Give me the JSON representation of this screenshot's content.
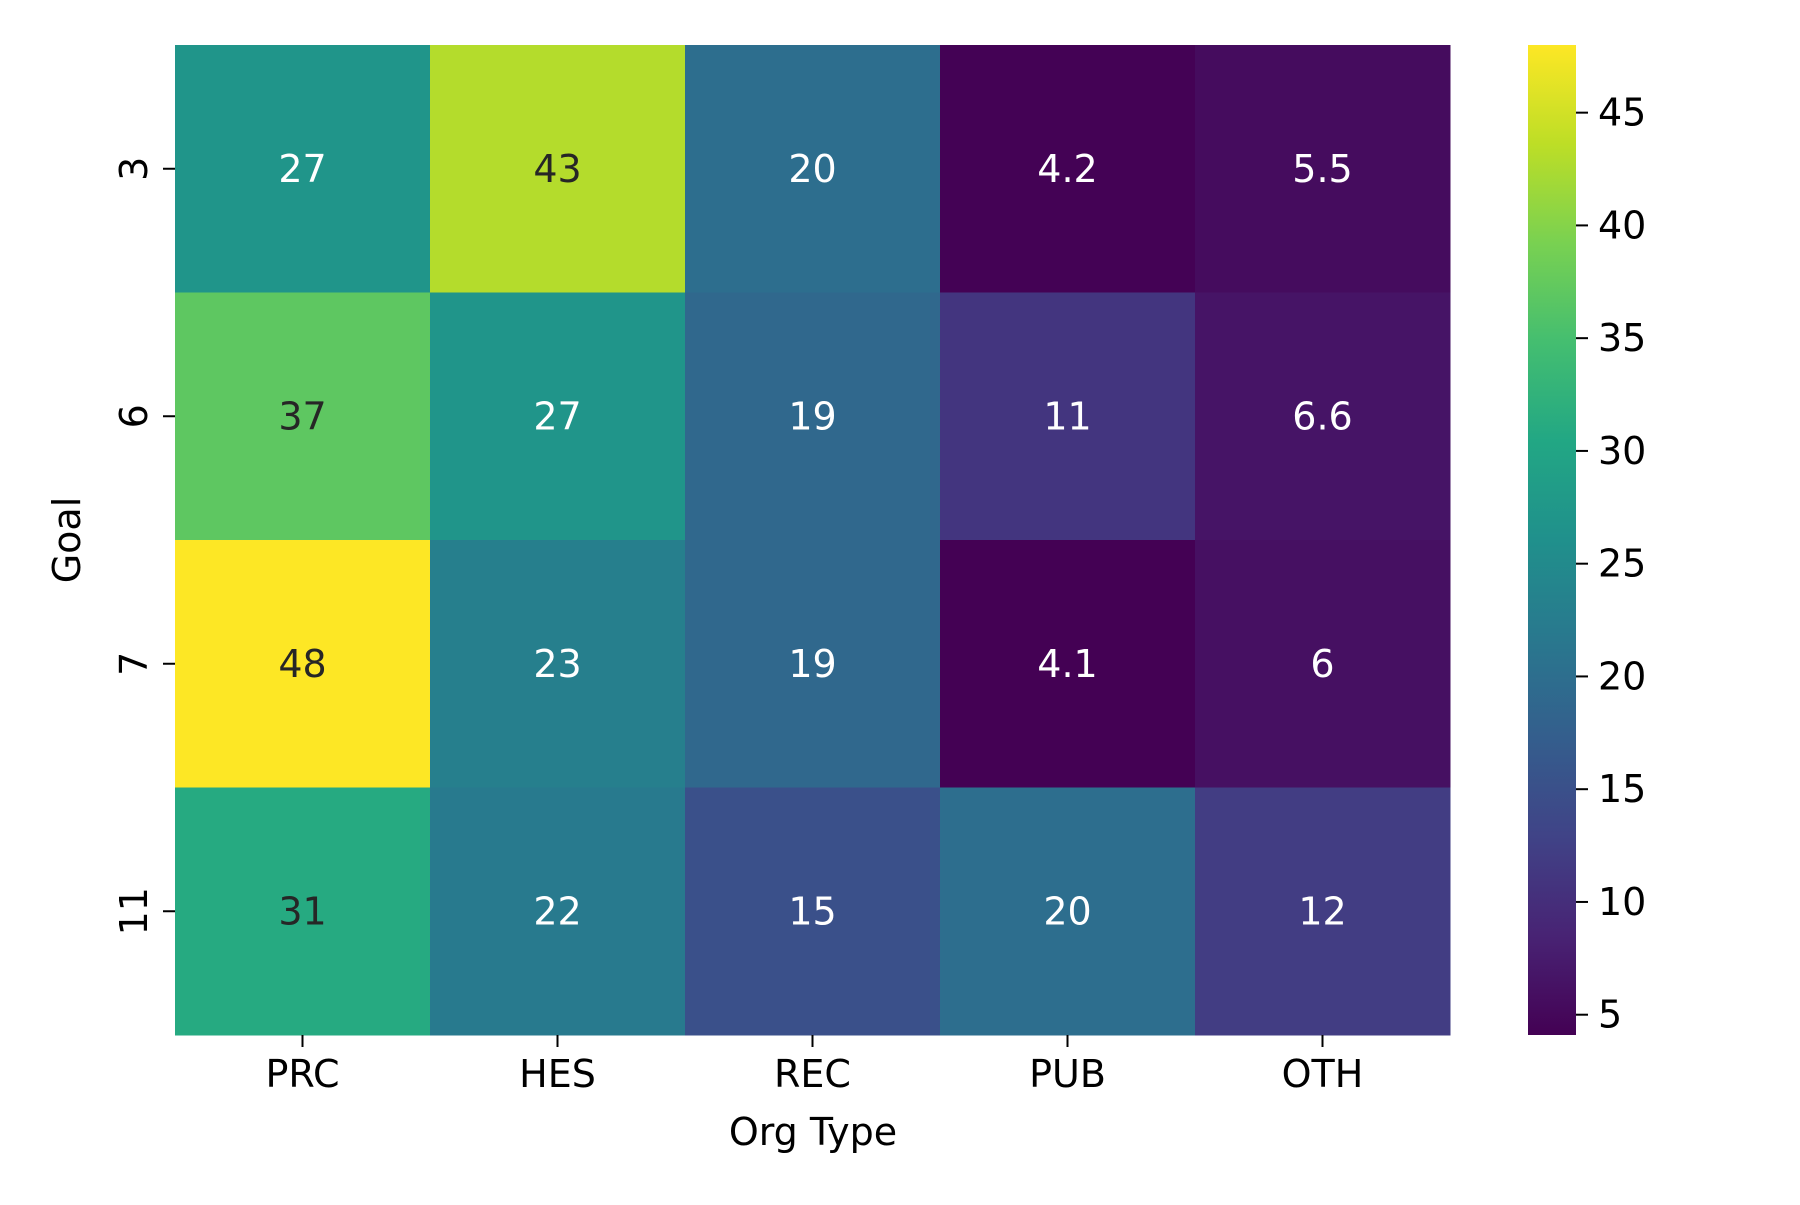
{
  "chart_data": {
    "type": "heatmap",
    "title": "",
    "xlabel": "Org Type",
    "ylabel": "Goal",
    "x_categories": [
      "PRC",
      "HES",
      "REC",
      "PUB",
      "OTH"
    ],
    "y_categories": [
      "3",
      "6",
      "7",
      "11"
    ],
    "values": [
      [
        27,
        43,
        20,
        4.2,
        5.5
      ],
      [
        37,
        27,
        19,
        11,
        6.6
      ],
      [
        48,
        23,
        19,
        4.1,
        6
      ],
      [
        31,
        22,
        15,
        20,
        12
      ]
    ],
    "value_labels": [
      [
        "27",
        "43",
        "20",
        "4.2",
        "5.5"
      ],
      [
        "37",
        "27",
        "19",
        "11",
        "6.6"
      ],
      [
        "48",
        "23",
        "19",
        "4.1",
        "6"
      ],
      [
        "31",
        "22",
        "15",
        "20",
        "12"
      ]
    ],
    "colormap": "viridis",
    "color_range": [
      4.1,
      48
    ],
    "colorbar": {
      "ticks": [
        5,
        10,
        15,
        20,
        25,
        30,
        35,
        40,
        45
      ],
      "tick_labels": [
        "5",
        "10",
        "15",
        "20",
        "25",
        "30",
        "35",
        "40",
        "45"
      ],
      "placement": "right"
    },
    "annotations_dark_text_color": "#262626",
    "annotations_light_text_color": "#ffffff"
  }
}
